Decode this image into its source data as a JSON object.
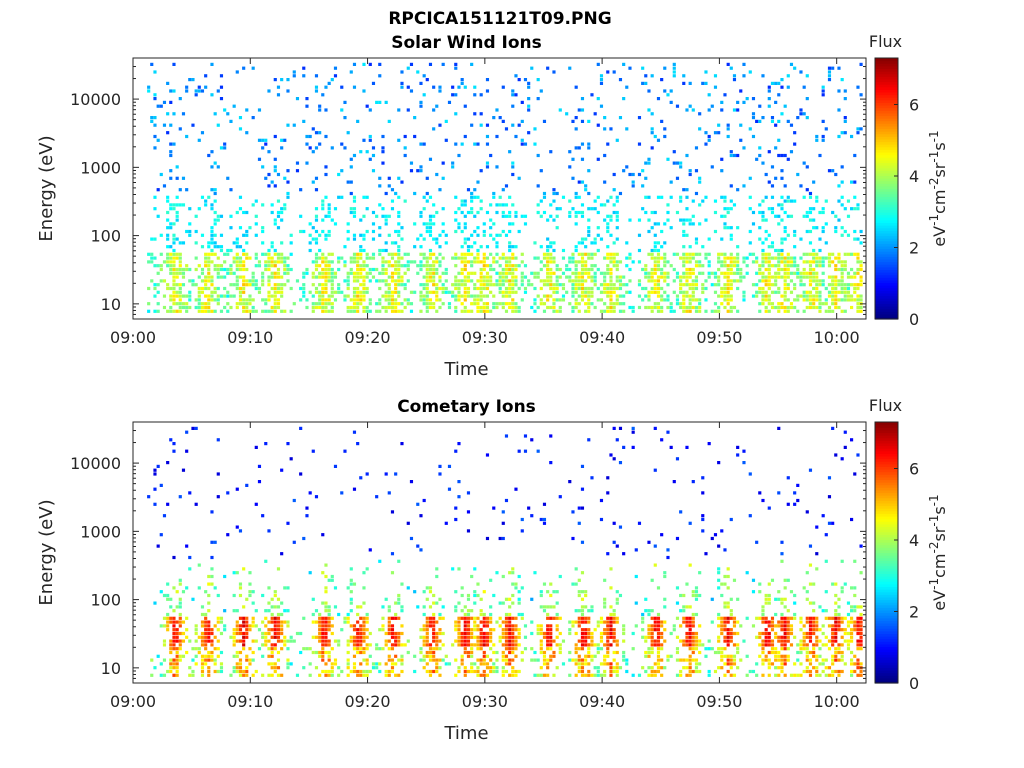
{
  "figure_title": "RPCICA151121T09.PNG",
  "chart_data": [
    {
      "type": "heatmap",
      "title": "Solar Wind Ions",
      "xlabel": "Time",
      "ylabel": "Energy (eV)",
      "x_ticks": [
        "09:00",
        "09:10",
        "09:20",
        "09:30",
        "09:40",
        "09:50",
        "10:00"
      ],
      "x_tick_minutes": [
        0,
        10,
        20,
        30,
        40,
        50,
        60
      ],
      "xlim_minutes": [
        0,
        62.5
      ],
      "y_scale": "log",
      "y_ticks": [
        "10",
        "100",
        "1000",
        "10000"
      ],
      "y_tick_values": [
        10,
        100,
        1000,
        10000
      ],
      "ylim": [
        6,
        40000
      ],
      "colorbar": {
        "title": "Flux",
        "label": "eV-1cm-2sr-1s-1",
        "ticks": [
          "0",
          "2",
          "4",
          "6"
        ],
        "tick_values": [
          0,
          2,
          4,
          6
        ],
        "range": [
          0,
          7.3
        ],
        "colormap": "jet"
      },
      "data_start_minute": 1.2,
      "enhancement_minutes": [
        3.5,
        6.3,
        9.3,
        12.0,
        16.2,
        19.1,
        22.1,
        25.4,
        28.2,
        29.8,
        32.0,
        35.4,
        38.3,
        40.6,
        44.5,
        47.3,
        50.6,
        54.0,
        55.4,
        57.7,
        59.8,
        61.8
      ],
      "description": "Sparse low-flux (blue/cyan, 1-3) counts from ~10 eV to ~30000 eV; intermittent moderate bursts (green/yellow, 3-5) at ~20-50 eV"
    },
    {
      "type": "heatmap",
      "title": "Cometary Ions",
      "xlabel": "Time",
      "ylabel": "Energy (eV)",
      "x_ticks": [
        "09:00",
        "09:10",
        "09:20",
        "09:30",
        "09:40",
        "09:50",
        "10:00"
      ],
      "x_tick_minutes": [
        0,
        10,
        20,
        30,
        40,
        50,
        60
      ],
      "xlim_minutes": [
        0,
        62.5
      ],
      "y_scale": "log",
      "y_ticks": [
        "10",
        "100",
        "1000",
        "10000"
      ],
      "y_tick_values": [
        10,
        100,
        1000,
        10000
      ],
      "ylim": [
        6,
        40000
      ],
      "colorbar": {
        "title": "Flux",
        "label": "eV-1cm-2sr-1s-1",
        "ticks": [
          "0",
          "2",
          "4",
          "6"
        ],
        "tick_values": [
          0,
          2,
          4,
          6
        ],
        "range": [
          0,
          7.3
        ],
        "colormap": "jet"
      },
      "data_start_minute": 1.2,
      "enhancement_minutes": [
        3.5,
        6.3,
        9.3,
        12.0,
        16.2,
        19.1,
        22.1,
        25.4,
        28.2,
        29.8,
        32.0,
        35.4,
        38.3,
        40.6,
        44.5,
        47.3,
        50.6,
        54.0,
        55.4,
        57.7,
        59.8,
        61.8
      ],
      "description": "Strong flux bursts (orange/red, 5-6.5) at ~15-60 eV with tails up to ~300 eV; sparse dark-blue counts at higher energies"
    }
  ]
}
